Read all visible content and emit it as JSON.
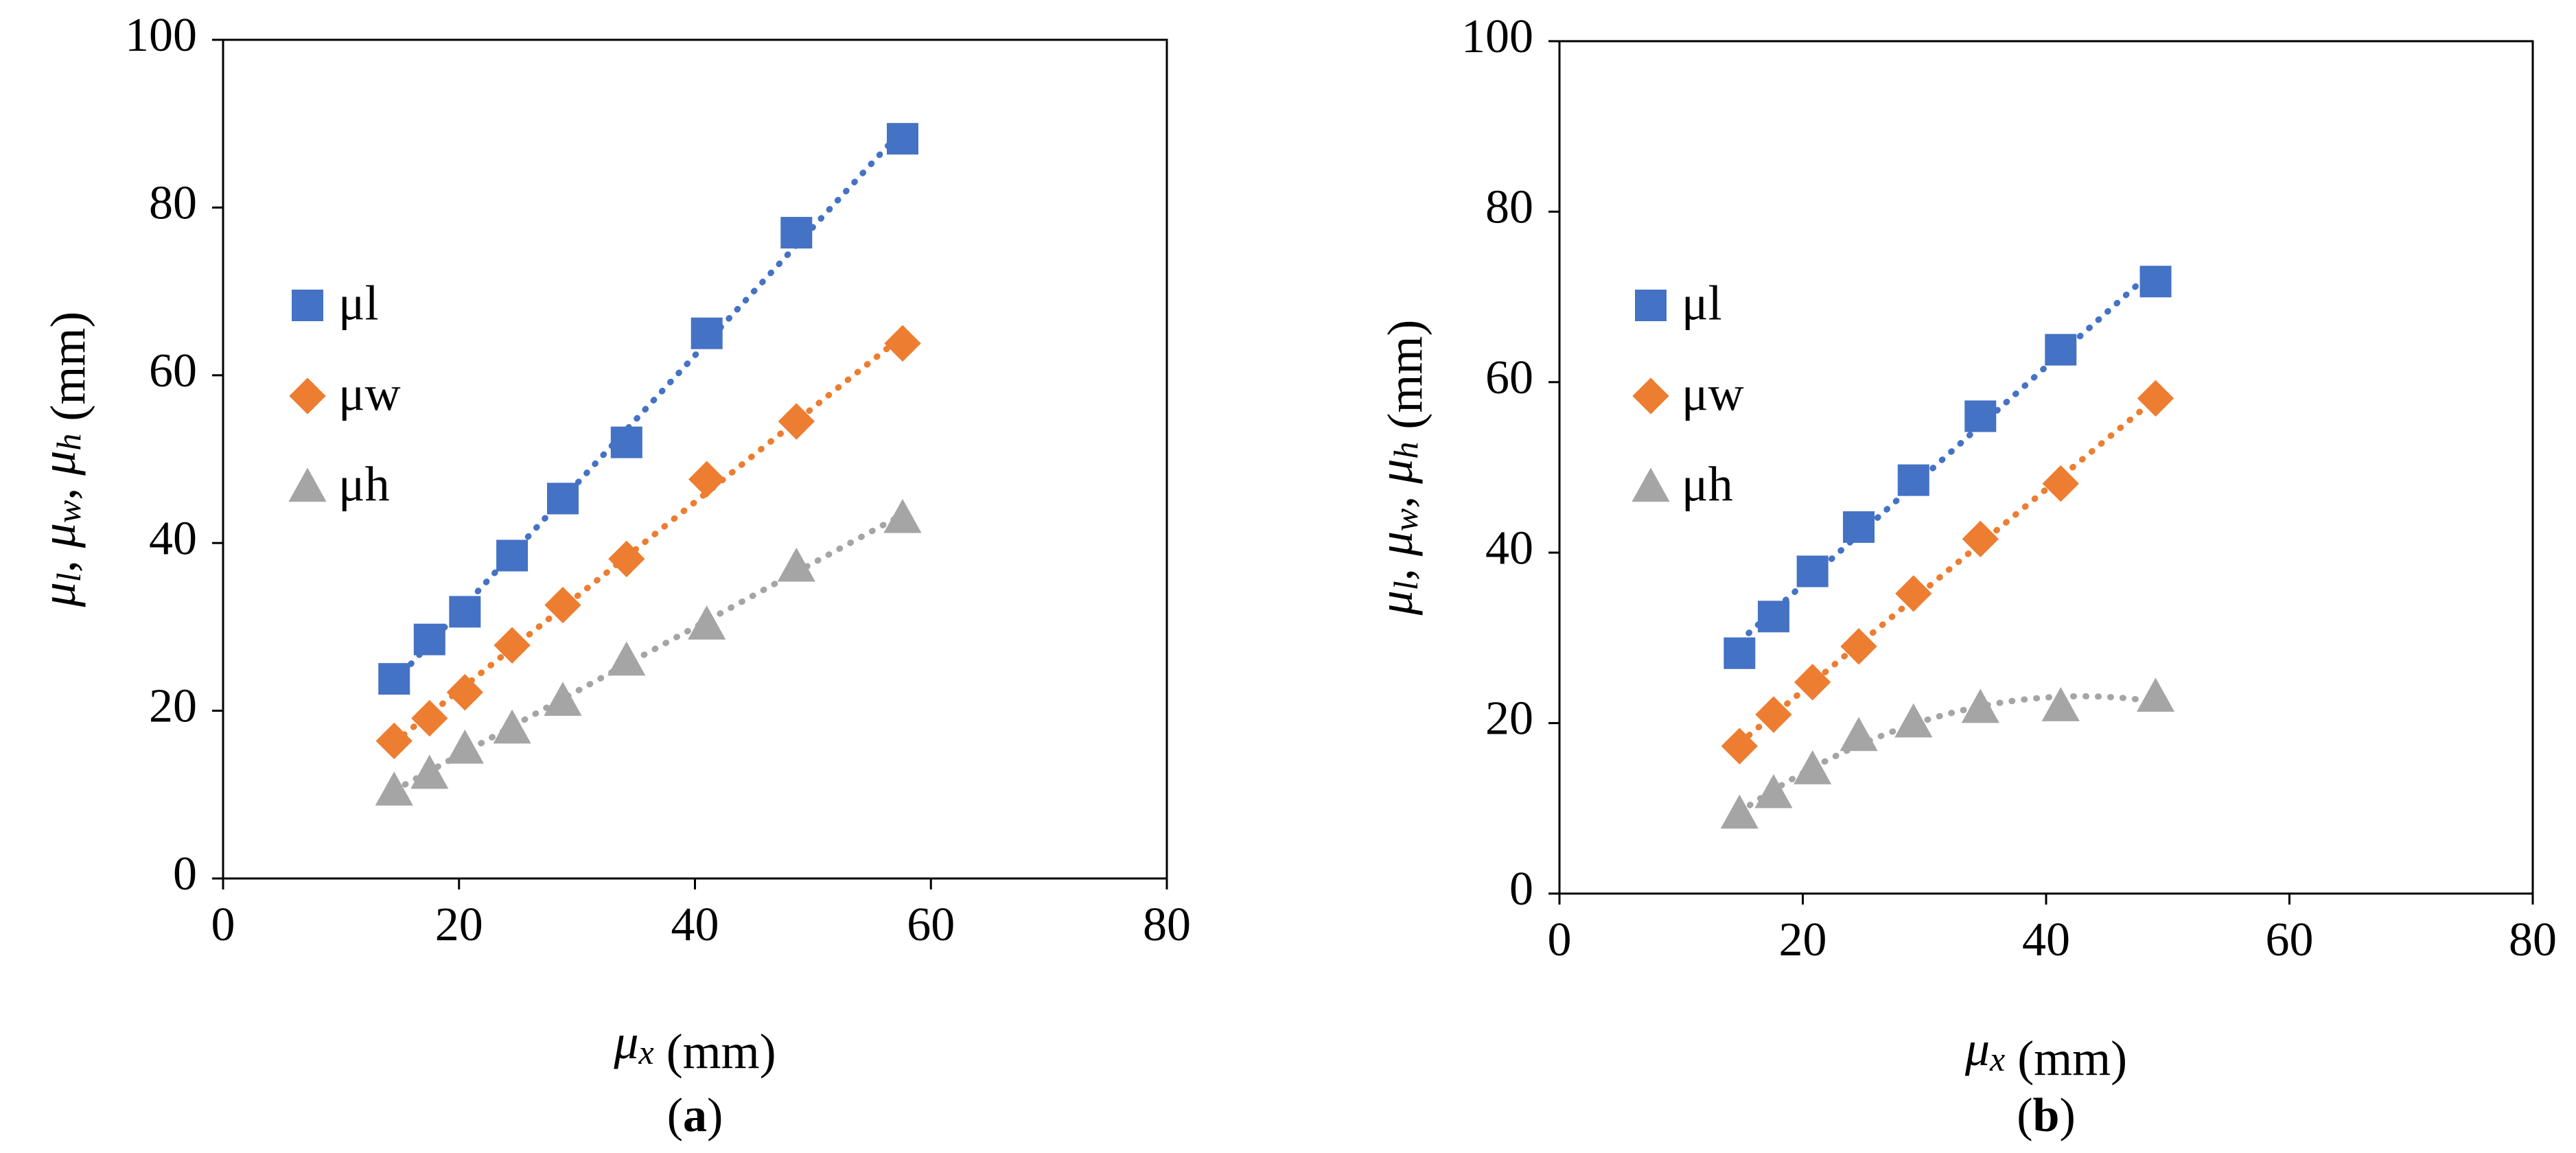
{
  "chart_data": [
    {
      "type": "scatter",
      "panel_label": "a",
      "xlabel": {
        "symbol": "μ",
        "subscript": "x",
        "unit": " (mm)"
      },
      "ylabel": {
        "parts": [
          {
            "symbol": "μ",
            "subscript": "l",
            "sep": ", "
          },
          {
            "symbol": "μ",
            "subscript": "w",
            "sep": ", "
          },
          {
            "symbol": "μ",
            "subscript": "h",
            "sep": ""
          }
        ],
        "unit": " (mm)"
      },
      "xlim": [
        0,
        80
      ],
      "ylim": [
        0,
        100
      ],
      "xticks": [
        0,
        20,
        40,
        60,
        80
      ],
      "yticks": [
        0,
        20,
        40,
        60,
        80,
        100
      ],
      "grid": false,
      "legend_position": "left",
      "series": [
        {
          "name": "μl",
          "color": "#4472C4",
          "marker": "square",
          "trendline": "dotted",
          "x": [
            14.5,
            17.5,
            20.5,
            24.5,
            28.8,
            34.2,
            41,
            48.6,
            57.6
          ],
          "y": [
            23.8,
            28.5,
            31.8,
            38.5,
            45.3,
            52,
            65,
            77,
            88.2
          ]
        },
        {
          "name": "μw",
          "color": "#ED7D31",
          "marker": "diamond",
          "trendline": "dotted",
          "x": [
            14.5,
            17.5,
            20.5,
            24.5,
            28.8,
            34.2,
            41,
            48.6,
            57.6
          ],
          "y": [
            16.4,
            19.1,
            22.2,
            27.8,
            32.6,
            38.1,
            47.6,
            54.5,
            63.8
          ]
        },
        {
          "name": "μh",
          "color": "#A5A5A5",
          "marker": "triangle",
          "trendline": "dotted",
          "x": [
            14.5,
            17.5,
            20.5,
            24.5,
            28.8,
            34.2,
            41,
            48.6,
            57.6
          ],
          "y": [
            10.5,
            12.5,
            15.5,
            17.9,
            21.2,
            26,
            30.3,
            37.2,
            43
          ]
        }
      ]
    },
    {
      "type": "scatter",
      "panel_label": "b",
      "xlabel": {
        "symbol": "μ",
        "subscript": "x",
        "unit": " (mm)"
      },
      "ylabel": {
        "parts": [
          {
            "symbol": "μ",
            "subscript": "l",
            "sep": ", "
          },
          {
            "symbol": "μ",
            "subscript": "w",
            "sep": ", "
          },
          {
            "symbol": "μ",
            "subscript": "h",
            "sep": ""
          }
        ],
        "unit": " (mm)"
      },
      "xlim": [
        0,
        80
      ],
      "ylim": [
        0,
        100
      ],
      "xticks": [
        0,
        20,
        40,
        60,
        80
      ],
      "yticks": [
        0,
        20,
        40,
        60,
        80,
        100
      ],
      "grid": false,
      "legend_position": "left",
      "series": [
        {
          "name": "μl",
          "color": "#4472C4",
          "marker": "square",
          "trendline": "dotted",
          "x": [
            14.8,
            17.6,
            20.8,
            24.6,
            29.1,
            34.6,
            41.2,
            49
          ],
          "y": [
            28.2,
            32.5,
            37.8,
            43,
            48.5,
            56,
            63.8,
            71.8
          ]
        },
        {
          "name": "μw",
          "color": "#ED7D31",
          "marker": "diamond",
          "trendline": "dotted",
          "x": [
            14.8,
            17.6,
            20.8,
            24.6,
            29.1,
            34.6,
            41.2,
            49
          ],
          "y": [
            17.3,
            21,
            24.8,
            29,
            35.2,
            41.6,
            48.1,
            58.1
          ]
        },
        {
          "name": "μh",
          "color": "#A5A5A5",
          "marker": "triangle",
          "trendline": "dotted",
          "x": [
            14.8,
            17.6,
            20.8,
            24.6,
            29.1,
            34.6,
            41.2,
            49
          ],
          "y": [
            9.4,
            11.8,
            14.6,
            18.5,
            20.1,
            21.8,
            22,
            23.1
          ]
        }
      ]
    }
  ]
}
